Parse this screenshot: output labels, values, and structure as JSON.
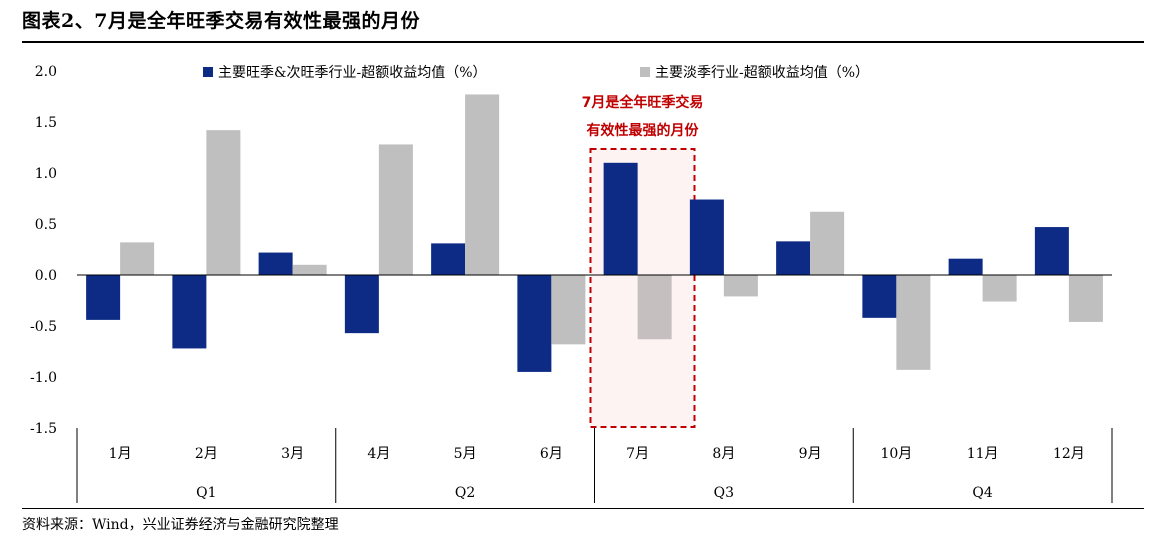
{
  "title": "图表2、7月是全年旺季交易有效性最强的月份",
  "source": "资料来源：Wind，兴业证券经济与金融研究院整理",
  "colors": {
    "primary": "#0d2a85",
    "secondary": "#bfbfbf",
    "highlight": "#c00000"
  },
  "chart_data": {
    "type": "bar",
    "categories": [
      "1月",
      "2月",
      "3月",
      "4月",
      "5月",
      "6月",
      "7月",
      "8月",
      "9月",
      "10月",
      "11月",
      "12月"
    ],
    "quarters": [
      "Q1",
      "Q2",
      "Q3",
      "Q4"
    ],
    "series": [
      {
        "name": "主要旺季&次旺季行业-超额收益均值（%）",
        "values": [
          -0.44,
          -0.72,
          0.22,
          -0.57,
          0.31,
          -0.95,
          1.1,
          0.74,
          0.33,
          -0.42,
          0.16,
          0.47
        ]
      },
      {
        "name": "主要淡季行业-超额收益均值（%）",
        "values": [
          0.32,
          1.42,
          0.1,
          1.28,
          1.77,
          -0.68,
          -0.63,
          -0.21,
          0.62,
          -0.93,
          -0.26,
          -0.46
        ]
      }
    ],
    "yticks": [
      "2.0",
      "1.5",
      "1.0",
      "0.5",
      "0.0",
      "-0.5",
      "-1.0",
      "-1.5"
    ],
    "ylim": [
      -1.5,
      2.0
    ],
    "annotation": {
      "lines": [
        "7月是全年旺季交易",
        "有效性最强的月份"
      ],
      "month_index": 6
    }
  }
}
